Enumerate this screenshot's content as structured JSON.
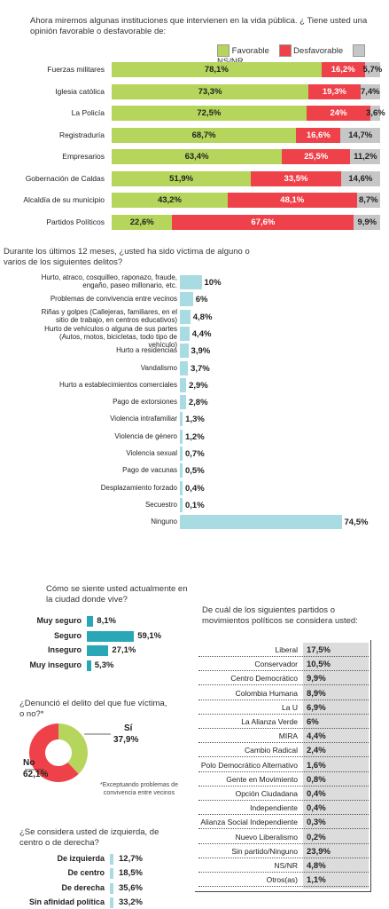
{
  "chart_data": [
    {
      "type": "bar",
      "title": "Ahora miremos algunas instituciones que intervienen en la vida pública. ¿ Tiene usted una opinión favorable o desfavorable de:",
      "legend": [
        "Favorable",
        "Desfavorable",
        "NS/NR"
      ],
      "colors": {
        "favorable": "#b5d55c",
        "desfavorable": "#ee4149",
        "nsnr": "#c6c6c6"
      },
      "categories": [
        "Fuerzas militares",
        "Iglesia católica",
        "La Policía",
        "Registraduría",
        "Empresarios",
        "Gobernación de Caldas",
        "Alcaldía de su municipio",
        "Partidos Políticos"
      ],
      "series": [
        {
          "name": "Favorable",
          "values": [
            78.1,
            73.3,
            72.5,
            68.7,
            63.4,
            51.9,
            43.2,
            22.6
          ],
          "labels": [
            "78,1%",
            "73,3%",
            "72,5%",
            "68,7%",
            "63,4%",
            "51,9%",
            "43,2%",
            "22,6%"
          ]
        },
        {
          "name": "Desfavorable",
          "values": [
            16.2,
            19.3,
            24,
            16.6,
            25.5,
            33.5,
            48.1,
            67.6
          ],
          "labels": [
            "16,2%",
            "19,3%",
            "24%",
            "16,6%",
            "25,5%",
            "33,5%",
            "48,1%",
            "67,6%"
          ]
        },
        {
          "name": "NS/NR",
          "values": [
            5.7,
            7.4,
            3.6,
            14.7,
            11.2,
            14.6,
            8.7,
            9.9
          ],
          "labels": [
            "5,7%",
            "7,4%",
            "3,6%",
            "14,7%",
            "11,2%",
            "14,6%",
            "8,7%",
            "9,9%"
          ]
        }
      ]
    },
    {
      "type": "bar",
      "title": "Durante los últimos 12 meses, ¿usted ha sido víctima de alguno o varios de los siguientes delitos?",
      "color": "#a8dbe2",
      "categories": [
        "Hurto, atraco, cosquilleo, raponazo, fraude, engaño, paseo millonario, etc.",
        "Problemas de convivencia entre vecinos",
        "Riñas y golpes (Callejeras, familiares, en el sitio de trabajo, en centros educativos)",
        "Hurto de vehículos o alguna de sus partes (Autos, motos, bicicletas, todo tipo de vehículo)",
        "Hurto a residencias",
        "Vandalismo",
        "Hurto a establecimientos comerciales",
        "Pago de extorsiones",
        "Violencia intrafamiliar",
        "Violencia de género",
        "Violencia sexual",
        "Pago de vacunas",
        "Desplazamiento forzado",
        "Secuestro",
        "Ninguno"
      ],
      "values": [
        10,
        6,
        4.8,
        4.4,
        3.9,
        3.7,
        2.9,
        2.8,
        1.3,
        1.2,
        0.7,
        0.5,
        0.4,
        0.1,
        74.5
      ],
      "labels": [
        "10%",
        "6%",
        "4,8%",
        "4,4%",
        "3,9%",
        "3,7%",
        "2,9%",
        "2,8%",
        "1,3%",
        "1,2%",
        "0,7%",
        "0,5%",
        "0,4%",
        "0,1%",
        "74,5%"
      ]
    },
    {
      "type": "bar",
      "title": "Cómo se siente usted actualmente en la ciudad donde vive?",
      "color": "#2aa7b7",
      "categories": [
        "Muy seguro",
        "Seguro",
        "Inseguro",
        "Muy inseguro"
      ],
      "values": [
        8.1,
        59.1,
        27.1,
        5.3
      ],
      "labels": [
        "8,1%",
        "59,1%",
        "27,1%",
        "5,3%"
      ]
    },
    {
      "type": "pie",
      "title": "¿Denunció el delito del que fue víctima, o no?*",
      "note": "*Exceptuando problemas de convivencia entre vecinos",
      "categories": [
        "Sí",
        "No"
      ],
      "values": [
        37.9,
        62.1
      ],
      "labels": [
        "37,9%",
        "62,1%"
      ],
      "colors": [
        "#b5d55c",
        "#ee4149"
      ]
    },
    {
      "type": "bar",
      "title": "¿Se considera usted de izquierda, de centro o de derecha?",
      "color": "#a8dbe2",
      "categories": [
        "De izquierda",
        "De centro",
        "De derecha",
        "Sin afinidad política"
      ],
      "values": [
        12.7,
        18.5,
        35.6,
        33.2
      ],
      "labels": [
        "12,7%",
        "18,5%",
        "35,6%",
        "33,2%"
      ]
    },
    {
      "type": "table",
      "title": "De cuál de los siguientes partidos o movimientos políticos se considera usted:",
      "categories": [
        "Liberal",
        "Conservador",
        "Centro Democrático",
        "Colombia Humana",
        "La U",
        "La Alianza Verde",
        "MIRA",
        "Cambio Radical",
        "Polo Democrático Alternativo",
        "Gente en Movimiento",
        "Opción Ciudadana",
        "Independiente",
        "Alianza Social Independiente",
        "Nuevo Liberalismo",
        "Sin partido/Ninguno",
        "NS/NR",
        "Otros(as)"
      ],
      "values": [
        17.5,
        10.5,
        9.9,
        8.9,
        6.9,
        6,
        4.4,
        2.4,
        1.6,
        0.8,
        0.4,
        0.4,
        0.3,
        0.2,
        23.9,
        4.8,
        1.1
      ],
      "labels": [
        "17,5%",
        "10,5%",
        "9,9%",
        "8,9%",
        "6,9%",
        "6%",
        "4,4%",
        "2,4%",
        "1,6%",
        "0,8%",
        "0,4%",
        "0,4%",
        "0,3%",
        "0,2%",
        "23,9%",
        "4,8%",
        "1,1%"
      ]
    }
  ]
}
